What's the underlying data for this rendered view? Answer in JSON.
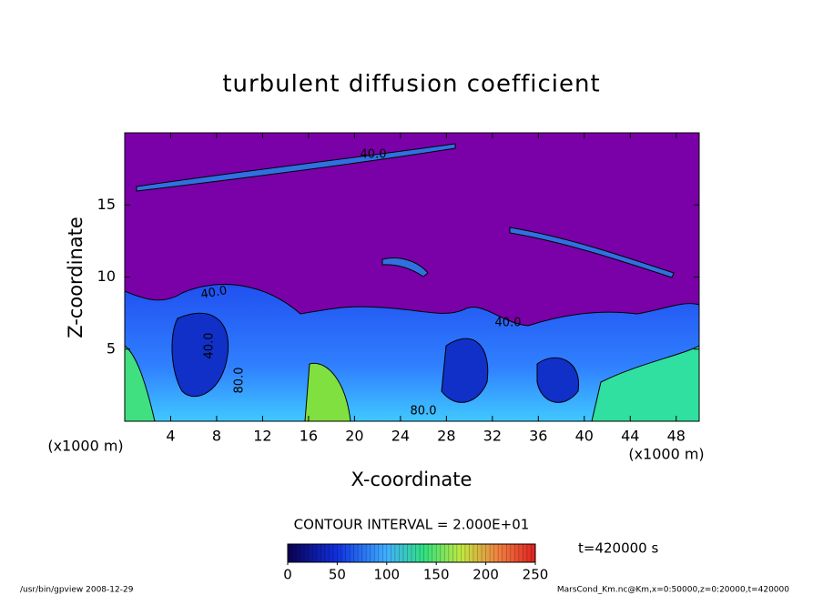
{
  "chart_data": {
    "type": "contour",
    "title": "turbulent diffusion coefficient",
    "x_label": "X-coordinate",
    "y_label": "Z-coordinate",
    "x_unit": "(x1000 m)",
    "y_unit": "(x1000 m)",
    "xlim": [
      0,
      50
    ],
    "xticks": [
      4,
      8,
      12,
      16,
      20,
      24,
      28,
      32,
      36,
      40,
      44,
      48
    ],
    "ylim": [
      0,
      20
    ],
    "yticks": [
      5,
      10,
      15
    ],
    "contour_interval": "CONTOUR INTERVAL = 2.000E+01",
    "contour_labels": [
      "40.0",
      "40.0",
      "40.0",
      "80.0",
      "40.0",
      "80.0"
    ],
    "colorbar": {
      "lim": [
        0,
        250
      ],
      "ticks": [
        0,
        50,
        100,
        150,
        200,
        250
      ]
    },
    "time_label": "t=420000 s",
    "footer_left": "/usr/bin/gpview   2008-12-29",
    "footer_right": "MarsCond_Km.nc@Km,x=0:50000,z=0:20000,t=420000"
  }
}
